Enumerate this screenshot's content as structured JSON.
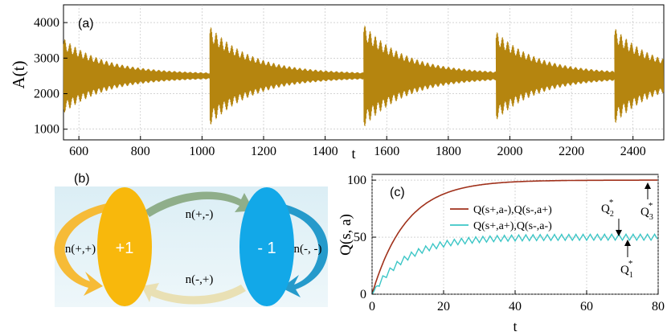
{
  "chart_data": [
    {
      "panel": "(a)",
      "type": "line",
      "ylabel": "A(t)",
      "xlabel": "t",
      "xlim": [
        550,
        2500
      ],
      "ylim": [
        700,
        4500
      ],
      "xticks": [
        "600",
        "800",
        "1000",
        "1200",
        "1400",
        "1600",
        "1800",
        "2000",
        "2200",
        "2400"
      ],
      "yticks": [
        "1000",
        "2000",
        "3000",
        "4000"
      ],
      "baseline": 2500,
      "color": "#b5850f",
      "segments": [
        {
          "start": 550,
          "end": 1025,
          "init_amp": 1000
        },
        {
          "start": 1025,
          "end": 1525,
          "init_amp": 1350
        },
        {
          "start": 1525,
          "end": 1955,
          "init_amp": 1400
        },
        {
          "start": 1955,
          "end": 2340,
          "init_amp": 1200
        },
        {
          "start": 2340,
          "end": 2500,
          "init_amp": 1300
        }
      ]
    },
    {
      "panel": "(c)",
      "type": "line",
      "xlabel": "t",
      "ylabel": "Q(s, a)",
      "xlim": [
        0,
        80
      ],
      "ylim": [
        0,
        105
      ],
      "xticks": [
        "0",
        "20",
        "40",
        "60",
        "80"
      ],
      "yticks": [
        "0",
        "50",
        "100"
      ],
      "series": [
        {
          "name": "Q(s+,a-),Q(s-,a+)",
          "color": "#a0311b",
          "asymptote": 100,
          "tau": 9.5
        },
        {
          "name": "Q(s+,a+),Q(s-,a-)",
          "color": "#3cc6c6",
          "asymptote": 50,
          "tau": 9.5,
          "ripple": 2.6,
          "period": 2
        }
      ],
      "annotations": [
        {
          "base": "Q",
          "sub": "2",
          "sup": "*"
        },
        {
          "base": "Q",
          "sub": "3",
          "sup": "*"
        },
        {
          "base": "Q",
          "sub": "1",
          "sup": "*"
        }
      ]
    }
  ],
  "diagram": {
    "panel": "(b)",
    "states": [
      "+1",
      "- 1"
    ],
    "transitions": [
      "n(+,+)",
      "n(+,-)",
      "n(-,+)",
      "n(-, -)"
    ],
    "colors": {
      "left": "#f8b80c",
      "right": "#12a8e8",
      "background": "#e6f1f5"
    }
  }
}
